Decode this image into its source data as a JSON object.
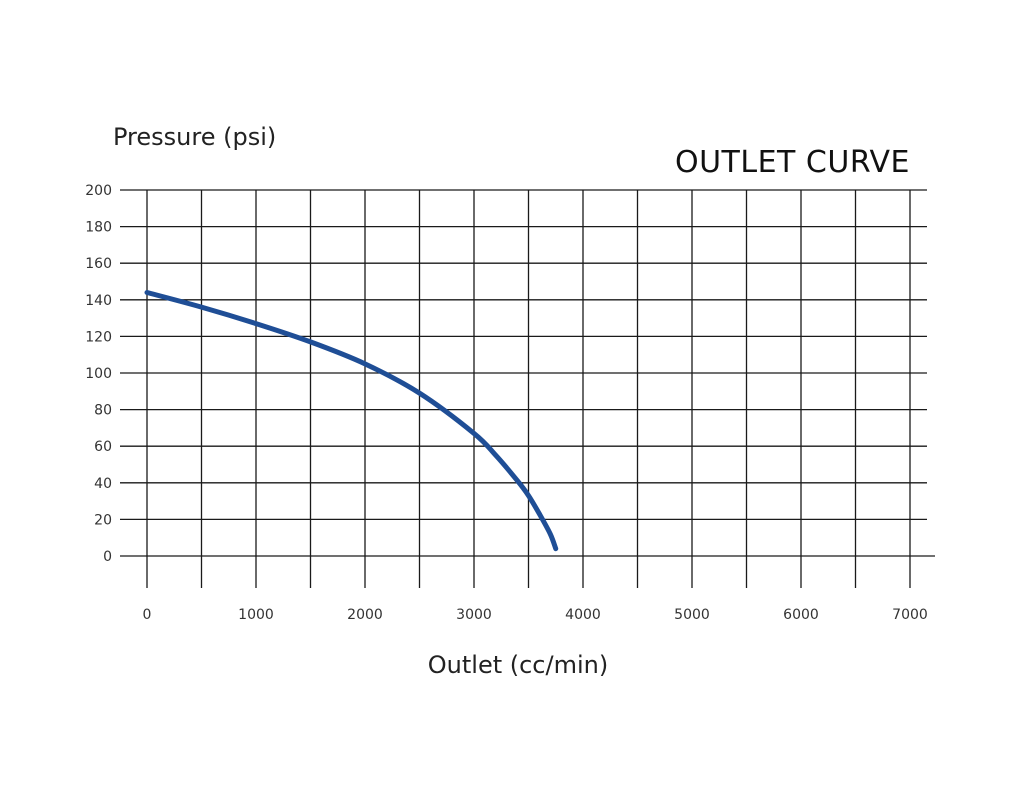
{
  "chart_data": {
    "type": "line",
    "title": "OUTLET CURVE",
    "xlabel": "Outlet (cc/min)",
    "ylabel": "Pressure (psi)",
    "xlim": [
      0,
      7000
    ],
    "ylim": [
      0,
      200
    ],
    "x_tick_labels": [
      "0",
      "1000",
      "2000",
      "3000",
      "4000",
      "5000",
      "6000",
      "7000"
    ],
    "y_tick_labels": [
      "0",
      "20",
      "40",
      "60",
      "80",
      "100",
      "120",
      "140",
      "160",
      "180",
      "200"
    ],
    "x_grid_values": [
      0,
      500,
      1000,
      1500,
      2000,
      2500,
      3000,
      3500,
      4000,
      4500,
      5000,
      5500,
      6000,
      6500,
      7000
    ],
    "grid": true,
    "line_color": "#1f4e96",
    "series": [
      {
        "x": [
          0,
          500,
          1000,
          1500,
          2000,
          2500,
          3000,
          3200,
          3400,
          3500,
          3600,
          3700,
          3750
        ],
        "y": [
          144,
          136,
          127,
          117,
          105,
          89,
          67,
          55,
          41,
          33,
          23,
          12,
          4
        ]
      }
    ]
  }
}
